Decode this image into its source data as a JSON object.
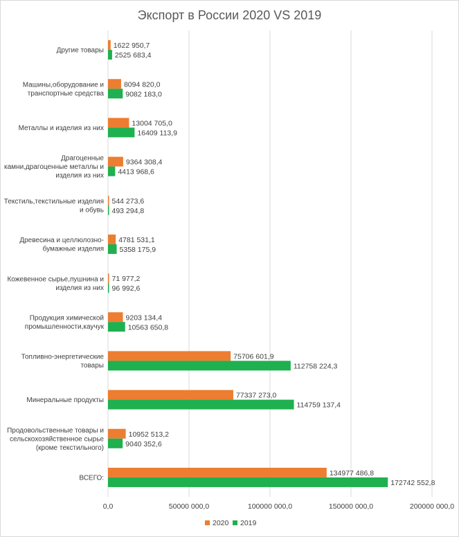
{
  "chart_data": {
    "type": "bar",
    "orientation": "horizontal",
    "title": "Экспорт в России 2020 VS 2019",
    "categories": [
      [
        "Другие товары"
      ],
      [
        "Машины,оборудование и",
        "транспортные средства"
      ],
      [
        "Металлы и изделия из них"
      ],
      [
        "Драгоценные",
        "камни,драгоценные металлы и",
        "изделия из них"
      ],
      [
        "Текстиль,текстильные изделия",
        "и обувь"
      ],
      [
        "Древесина и целлюлозно-",
        "бумажные изделия"
      ],
      [
        "Кожевенное сырье,пушнина и",
        "изделия из них"
      ],
      [
        "Продукция химической",
        "промышленности,каучук"
      ],
      [
        "Топливно-энергетические",
        "товары"
      ],
      [
        "Минеральные продукты"
      ],
      [
        "Продовольственные товары и",
        "сельскохозяйственное сырье",
        "(кроме текстильного)"
      ],
      [
        "ВСЕГО:"
      ]
    ],
    "series": [
      {
        "name": "2020",
        "color": "#ed7d31",
        "values": [
          1622950.7,
          8094820.0,
          13004705.0,
          9364308.4,
          544273.6,
          4781531.1,
          71977.2,
          9203134.4,
          75706601.9,
          77337273.0,
          10952513.2,
          134977486.8
        ],
        "labels": [
          "1622 950,7",
          "8094 820,0",
          "13004 705,0",
          "9364 308,4",
          "544 273,6",
          "4781 531,1",
          "71 977,2",
          "9203 134,4",
          "75706 601,9",
          "77337 273,0",
          "10952 513,2",
          "134977 486,8"
        ]
      },
      {
        "name": "2019",
        "color": "#1fb04f",
        "values": [
          2525683.4,
          9082183.0,
          16409113.9,
          4413968.6,
          493294.8,
          5358175.9,
          96992.6,
          10563650.8,
          112758224.3,
          114759137.4,
          9040352.6,
          172742552.8
        ],
        "labels": [
          "2525 683,4",
          "9082 183,0",
          "16409 113,9",
          "4413 968,6",
          "493 294,8",
          "5358 175,9",
          "96 992,6",
          "10563 650,8",
          "112758 224,3",
          "114759 137,4",
          "9040 352,6",
          "172742 552,8"
        ]
      }
    ],
    "xlim": [
      0,
      200000000
    ],
    "xticks": [
      0,
      50000000,
      100000000,
      150000000,
      200000000
    ],
    "xtick_labels": [
      "0,0",
      "50000 000,0",
      "100000 000,0",
      "150000 000,0",
      "200000 000,0"
    ],
    "grid": "vertical",
    "legend": "bottom"
  }
}
